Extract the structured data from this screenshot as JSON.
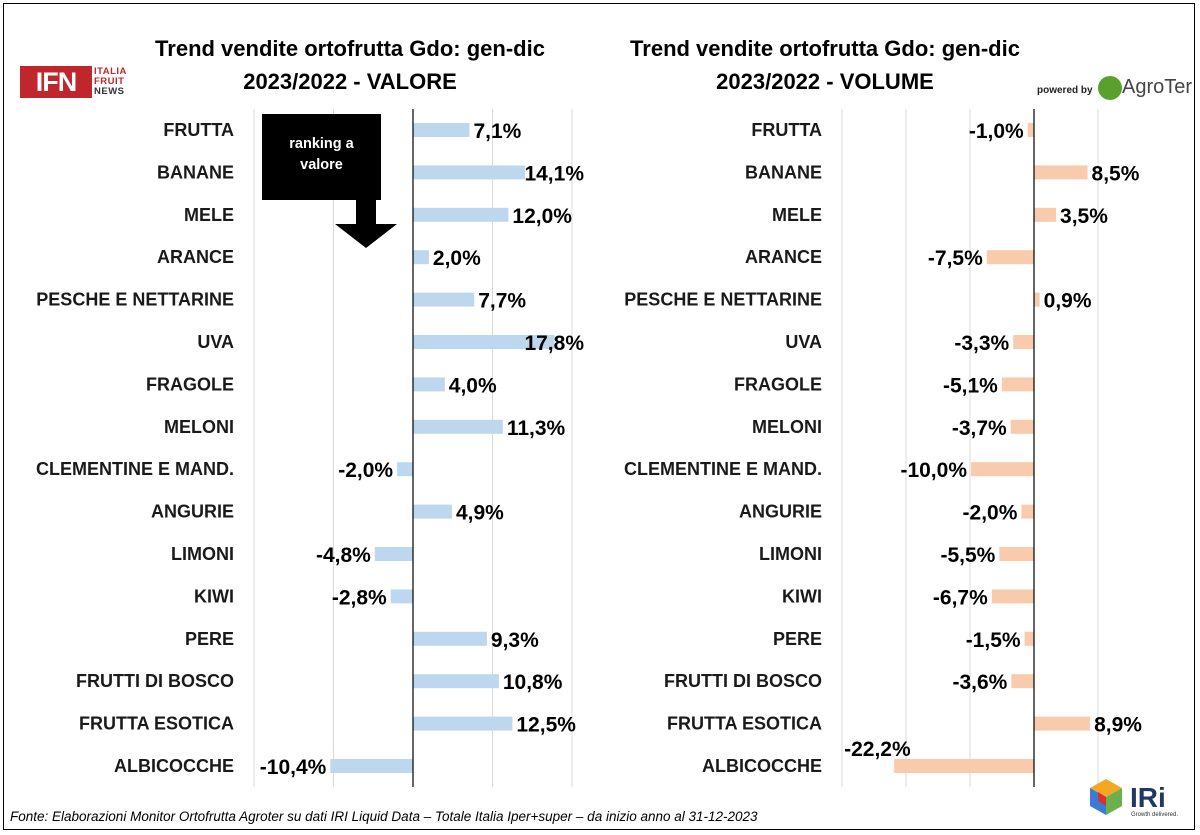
{
  "titles": {
    "left_line1": "Trend vendite ortofrutta Gdo: gen-dic",
    "left_line2": "2023/2022 - VALORE",
    "right_line1": "Trend vendite ortofrutta Gdo: gen-dic",
    "right_line2": "2023/2022 - VOLUME"
  },
  "annotation": {
    "line1": "ranking a",
    "line2": "valore"
  },
  "logos": {
    "ifn_main": "IFN",
    "ifn_line1": "ITALIA",
    "ifn_line2": "FRUIT",
    "ifn_line3": "NEWS",
    "powered_by": "powered by",
    "agroter": "AgroTer",
    "iri": "IRi",
    "iri_tagline": "Growth delivered."
  },
  "source": "Fonte: Elaborazioni Monitor Ortofrutta Agroter su dati IRI Liquid Data – Totale Italia Iper+super –  da inizio anno al 31-12-2023",
  "chart_data": [
    {
      "type": "bar",
      "orientation": "horizontal",
      "title": "Trend vendite ortofrutta Gdo: gen-dic 2023/2022 - VALORE",
      "categories": [
        "FRUTTA",
        "BANANE",
        "MELE",
        "ARANCE",
        "PESCHE E NETTARINE",
        "UVA",
        "FRAGOLE",
        "MELONI",
        "CLEMENTINE E MAND.",
        "ANGURIE",
        "LIMONI",
        "KIWI",
        "PERE",
        "FRUTTI DI BOSCO",
        "FRUTTA ESOTICA",
        "ALBICOCCHE"
      ],
      "values": [
        7.1,
        14.1,
        12.0,
        2.0,
        7.7,
        17.8,
        4.0,
        11.3,
        -2.0,
        4.9,
        -4.8,
        -2.8,
        9.3,
        10.8,
        12.5,
        -10.4
      ],
      "labels": [
        "7,1%",
        "14,1%",
        "12,0%",
        "2,0%",
        "7,7%",
        "17,8%",
        "4,0%",
        "11,3%",
        "-2,0%",
        "4,9%",
        "-4,8%",
        "-2,8%",
        "9,3%",
        "10,8%",
        "12,5%",
        "-10,4%"
      ],
      "xlim": [
        -20,
        20
      ],
      "grid": true,
      "bar_color": "#bdd7ee"
    },
    {
      "type": "bar",
      "orientation": "horizontal",
      "title": "Trend vendite ortofrutta Gdo: gen-dic 2023/2022 - VOLUME",
      "categories": [
        "FRUTTA",
        "BANANE",
        "MELE",
        "ARANCE",
        "PESCHE E NETTARINE",
        "UVA",
        "FRAGOLE",
        "MELONI",
        "CLEMENTINE E MAND.",
        "ANGURIE",
        "LIMONI",
        "KIWI",
        "PERE",
        "FRUTTI DI BOSCO",
        "FRUTTA ESOTICA",
        "ALBICOCCHE"
      ],
      "values": [
        -1.0,
        8.5,
        3.5,
        -7.5,
        0.9,
        -3.3,
        -5.1,
        -3.7,
        -10.0,
        -2.0,
        -5.5,
        -6.7,
        -1.5,
        -3.6,
        8.9,
        -22.2
      ],
      "labels": [
        "-1,0%",
        "8,5%",
        "3,5%",
        "-7,5%",
        "0,9%",
        "-3,3%",
        "-5,1%",
        "-3,7%",
        "-10,0%",
        "-2,0%",
        "-5,5%",
        "-6,7%",
        "-1,5%",
        "-3,6%",
        "8,9%",
        "-22,2%"
      ],
      "xlim": [
        -30,
        20
      ],
      "grid": true,
      "bar_color": "#f8cbad"
    }
  ]
}
